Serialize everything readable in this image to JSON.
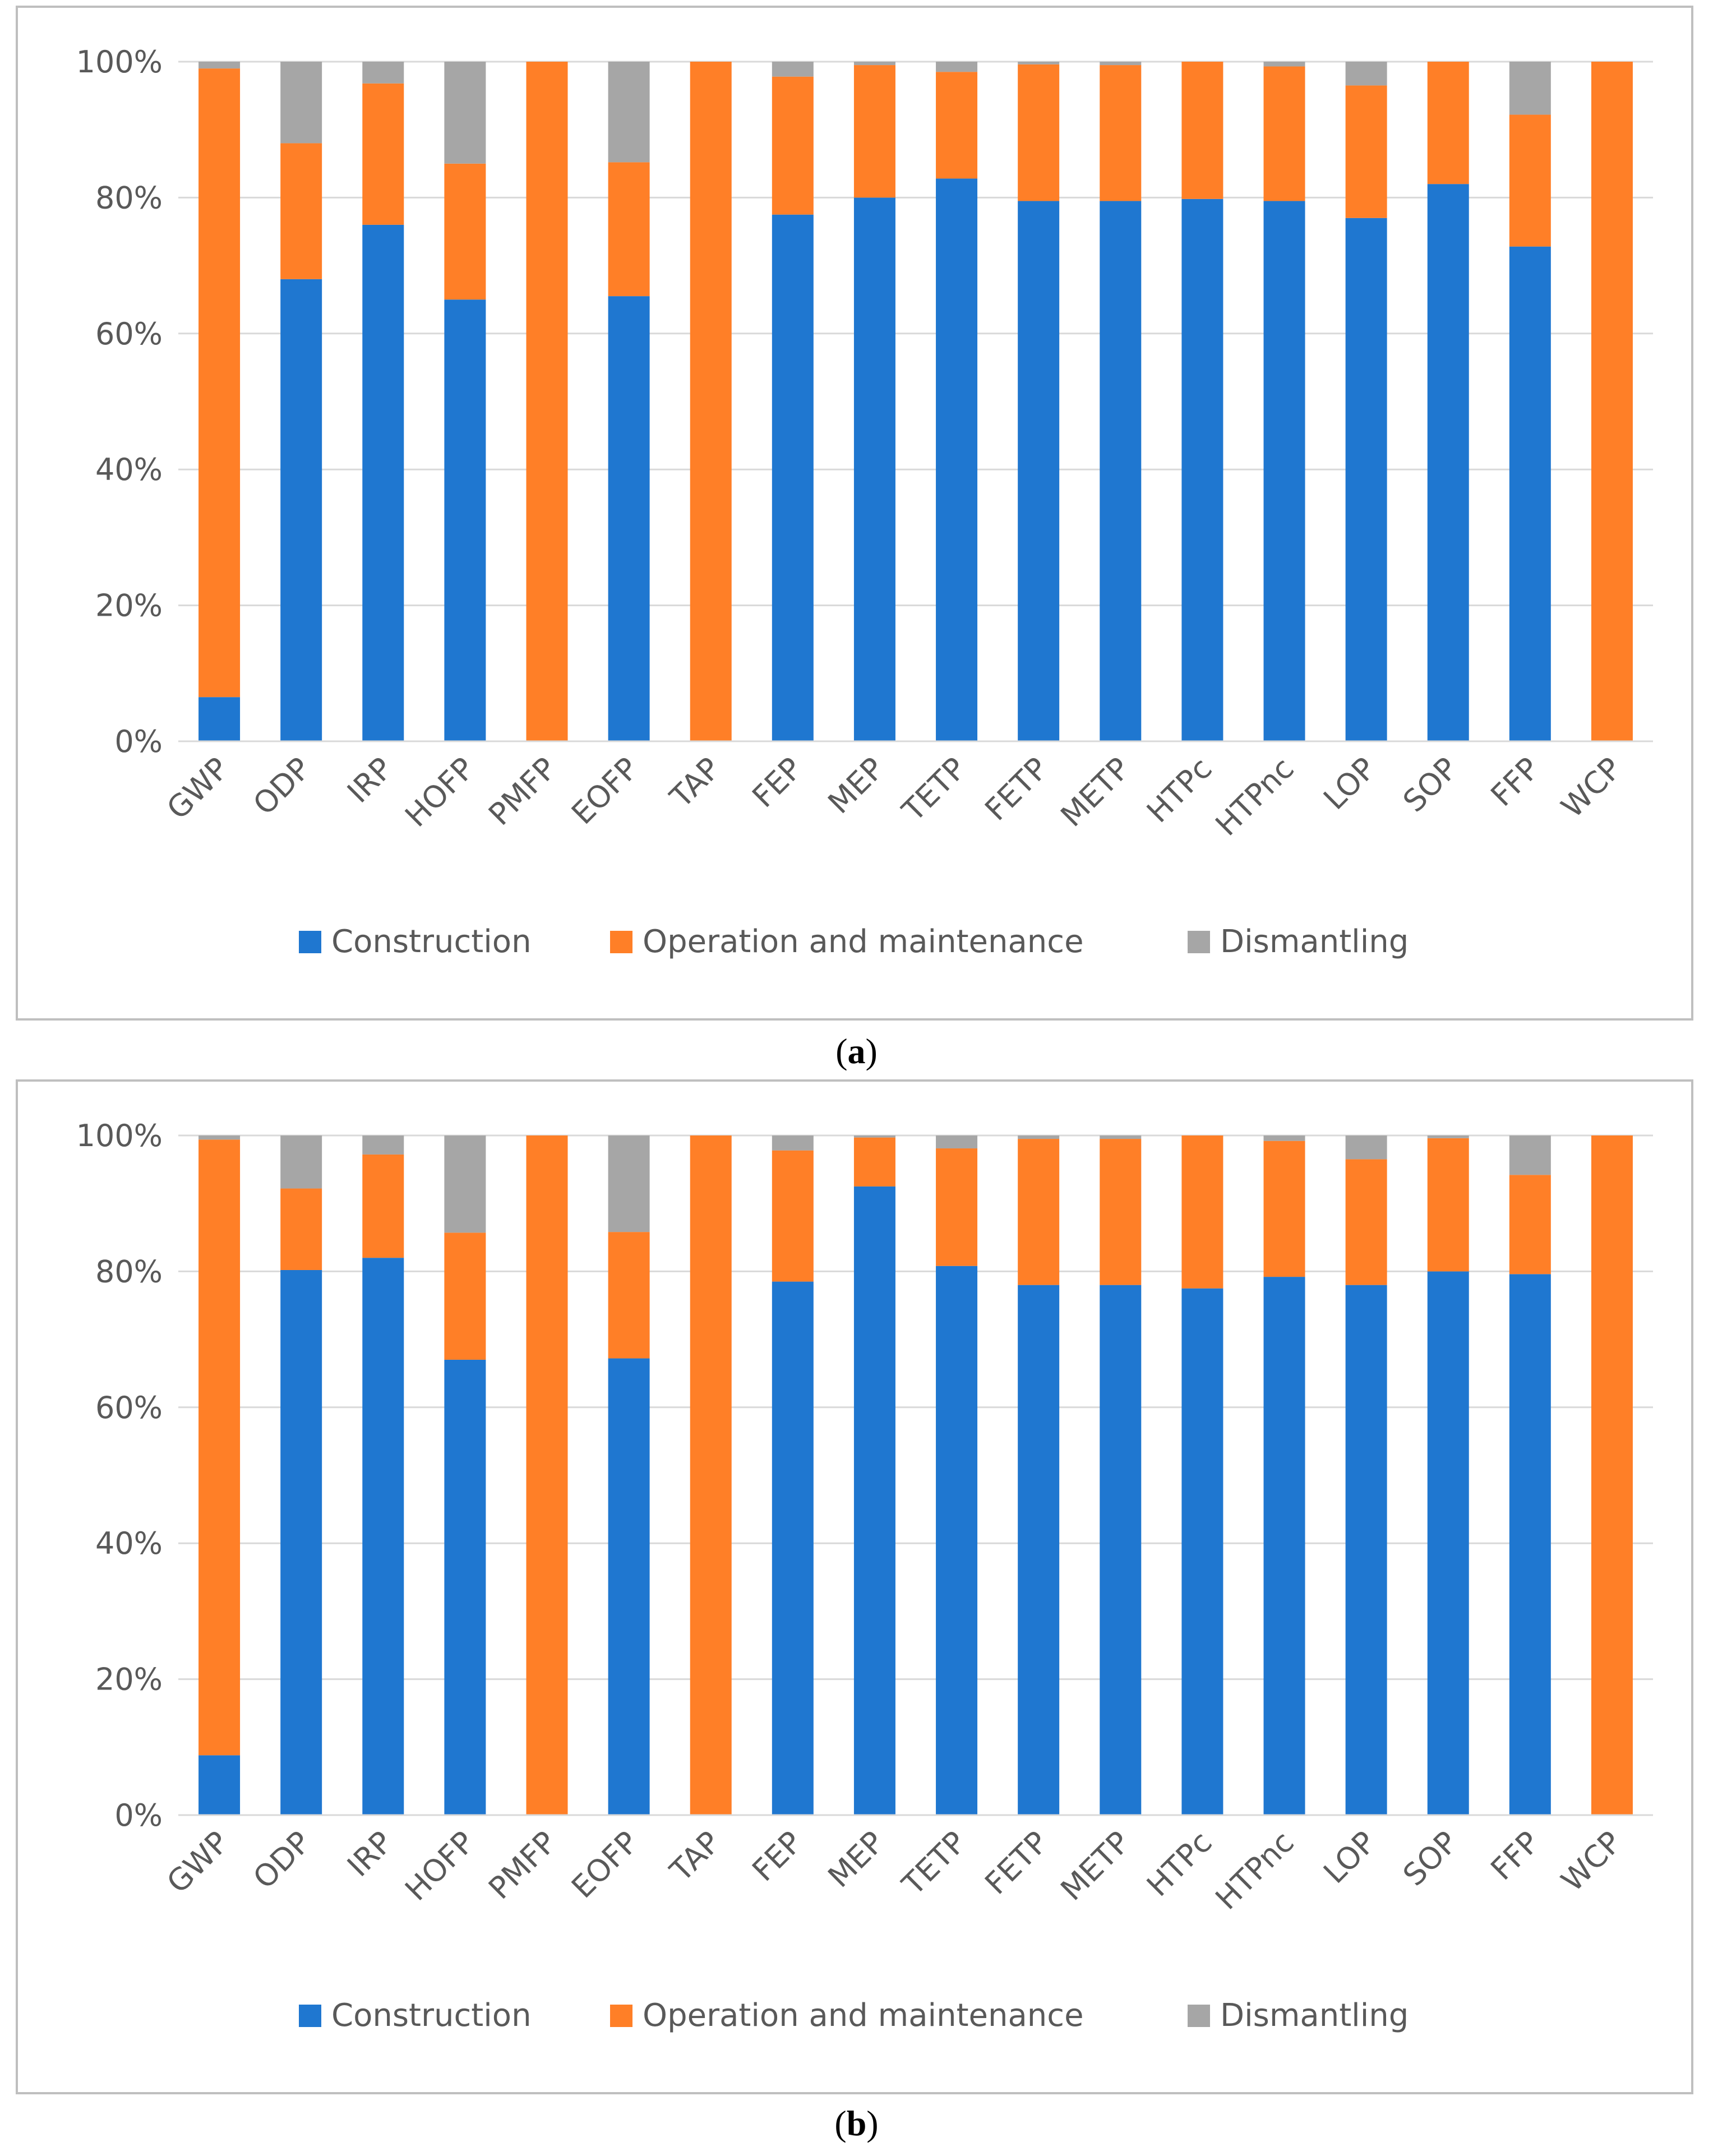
{
  "colors": {
    "construction": "#1F77D0",
    "operation": "#FF7F27",
    "dismantling": "#A6A6A6",
    "grid": "#D9D9D9",
    "tick_text": "#595959",
    "frame": "#BFBFBF"
  },
  "chart_data": [
    {
      "type": "bar",
      "stacked": true,
      "caption": "a",
      "categories": [
        "GWP",
        "ODP",
        "IRP",
        "HOFP",
        "PMFP",
        "EOFP",
        "TAP",
        "FEP",
        "MEP",
        "TETP",
        "FETP",
        "METP",
        "HTPc",
        "HTPnc",
        "LOP",
        "SOP",
        "FFP",
        "WCP"
      ],
      "series": [
        {
          "name": "Construction",
          "values": [
            6.5,
            68,
            76,
            65,
            0,
            65.5,
            0,
            77.5,
            80,
            82.8,
            79.5,
            79.5,
            79.8,
            79.5,
            77,
            82,
            72.8,
            0
          ]
        },
        {
          "name": "Operation and maintenance",
          "values": [
            92.5,
            20,
            20.8,
            20,
            100,
            19.7,
            100,
            20.3,
            19.5,
            15.7,
            20.1,
            20,
            20.2,
            19.8,
            19.5,
            18,
            19.4,
            100
          ]
        },
        {
          "name": "Dismantling",
          "values": [
            1,
            12,
            3.2,
            15,
            0,
            14.8,
            0,
            2.2,
            0.5,
            1.5,
            0.4,
            0.5,
            0,
            0.7,
            3.5,
            0,
            7.8,
            0
          ]
        }
      ],
      "yticks": [
        "0%",
        "20%",
        "40%",
        "60%",
        "80%",
        "100%"
      ],
      "ylim": [
        0,
        100
      ],
      "grid": true,
      "legend": "bottom"
    },
    {
      "type": "bar",
      "stacked": true,
      "caption": "b",
      "categories": [
        "GWP",
        "ODP",
        "IRP",
        "HOFP",
        "PMFP",
        "EOFP",
        "TAP",
        "FEP",
        "MEP",
        "TETP",
        "FETP",
        "METP",
        "HTPc",
        "HTPnc",
        "LOP",
        "SOP",
        "FFP",
        "WCP"
      ],
      "series": [
        {
          "name": "Construction",
          "values": [
            8.8,
            80.2,
            82,
            67,
            0,
            67.2,
            0,
            78.5,
            92.5,
            80.8,
            78,
            78,
            77.5,
            79.2,
            78,
            80,
            79.6,
            0
          ]
        },
        {
          "name": "Operation and maintenance",
          "values": [
            90.6,
            12,
            15.2,
            18.7,
            100,
            18.6,
            100,
            19.3,
            7.2,
            17.3,
            21.5,
            21.5,
            22.5,
            20,
            18.5,
            19.6,
            14.6,
            100
          ]
        },
        {
          "name": "Dismantling",
          "values": [
            0.6,
            7.8,
            2.8,
            14.3,
            0,
            14.2,
            0,
            2.2,
            0.3,
            1.9,
            0.5,
            0.5,
            0,
            0.8,
            3.5,
            0.4,
            5.8,
            0
          ]
        }
      ],
      "yticks": [
        "0%",
        "20%",
        "40%",
        "60%",
        "80%",
        "100%"
      ],
      "ylim": [
        0,
        100
      ],
      "grid": true,
      "legend": "bottom"
    }
  ]
}
